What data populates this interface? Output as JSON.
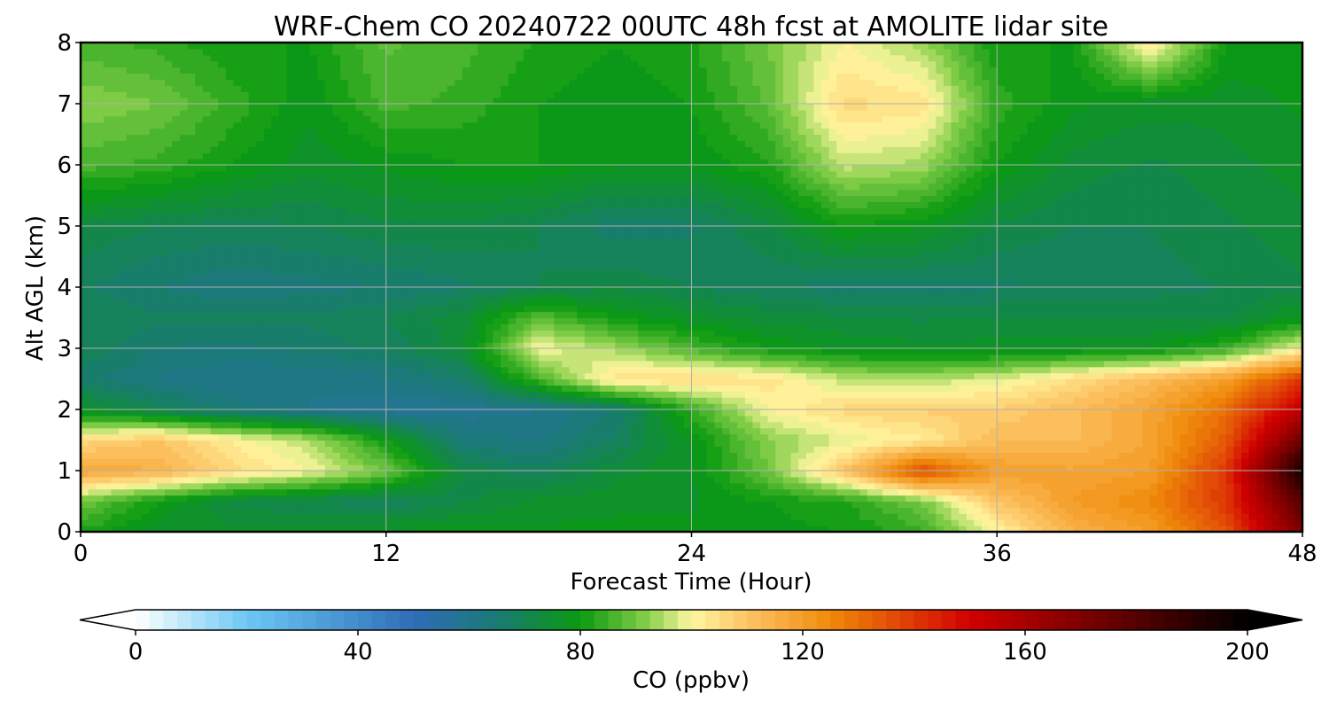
{
  "chart_data": {
    "type": "heatmap",
    "title": "WRF-Chem CO  20240722 00UTC 48h fcst at AMOLITE lidar site",
    "xlabel": "Forecast Time (Hour)",
    "ylabel": "Alt AGL (km)",
    "xlim": [
      0,
      48
    ],
    "ylim": [
      0,
      8
    ],
    "xticks": [
      0,
      12,
      24,
      36,
      48
    ],
    "yticks": [
      0,
      1,
      2,
      3,
      4,
      5,
      6,
      7,
      8
    ],
    "grid": true,
    "colorbar": {
      "label": "CO  (ppbv)",
      "range": [
        0,
        200
      ],
      "ticks": [
        0,
        40,
        80,
        120,
        160,
        200
      ],
      "extend": "both",
      "orientation": "horizontal",
      "colors": [
        {
          "v": 0,
          "c": "#ffffff"
        },
        {
          "v": 20,
          "c": "#6cc8f3"
        },
        {
          "v": 50,
          "c": "#2f6db8"
        },
        {
          "v": 65,
          "c": "#1a7a74"
        },
        {
          "v": 80,
          "c": "#0a9a10"
        },
        {
          "v": 92,
          "c": "#86ce4a"
        },
        {
          "v": 100,
          "c": "#fff7a0"
        },
        {
          "v": 110,
          "c": "#fdc465"
        },
        {
          "v": 125,
          "c": "#f08a0a"
        },
        {
          "v": 150,
          "c": "#d10000"
        },
        {
          "v": 175,
          "c": "#6a0000"
        },
        {
          "v": 200,
          "c": "#000000"
        }
      ]
    },
    "field": {
      "x": [
        0,
        3,
        6,
        9,
        12,
        15,
        18,
        21,
        24,
        27,
        30,
        33,
        36,
        39,
        42,
        45,
        48
      ],
      "y": [
        0,
        0.5,
        1,
        1.5,
        2,
        2.5,
        3,
        3.5,
        4,
        5,
        6,
        7,
        8
      ],
      "z": [
        [
          82,
          76,
          76,
          76,
          78,
          79,
          78,
          78,
          78,
          79,
          80,
          84,
          100,
          115,
          120,
          135,
          170
        ],
        [
          90,
          80,
          72,
          70,
          68,
          72,
          76,
          77,
          77,
          80,
          82,
          90,
          110,
          120,
          125,
          140,
          180
        ],
        [
          118,
          115,
          106,
          100,
          90,
          72,
          68,
          74,
          77,
          90,
          110,
          137,
          120,
          118,
          120,
          140,
          195
        ],
        [
          106,
          110,
          102,
          95,
          80,
          64,
          62,
          68,
          78,
          92,
          98,
          102,
          112,
          112,
          118,
          134,
          175
        ],
        [
          76,
          70,
          64,
          60,
          58,
          58,
          60,
          65,
          84,
          100,
          106,
          108,
          108,
          112,
          118,
          130,
          155
        ],
        [
          66,
          62,
          60,
          60,
          62,
          66,
          86,
          104,
          106,
          104,
          96,
          95,
          98,
          105,
          112,
          120,
          140
        ],
        [
          70,
          65,
          64,
          66,
          68,
          74,
          100,
          94,
          86,
          80,
          77,
          76,
          76,
          77,
          78,
          84,
          100
        ],
        [
          70,
          68,
          68,
          68,
          70,
          74,
          88,
          80,
          76,
          74,
          73,
          72,
          73,
          72,
          72,
          72,
          78
        ],
        [
          68,
          65,
          63,
          64,
          65,
          67,
          70,
          72,
          70,
          68,
          66,
          66,
          67,
          68,
          69,
          70,
          72
        ],
        [
          72,
          70,
          69,
          70,
          72,
          72,
          70,
          66,
          67,
          72,
          80,
          78,
          72,
          70,
          70,
          72,
          74
        ],
        [
          86,
          84,
          80,
          76,
          78,
          80,
          80,
          78,
          78,
          82,
          96,
          94,
          80,
          74,
          72,
          74,
          76
        ],
        [
          92,
          90,
          84,
          78,
          86,
          84,
          80,
          78,
          80,
          88,
          106,
          104,
          84,
          78,
          76,
          76,
          78
        ],
        [
          86,
          84,
          80,
          80,
          88,
          86,
          82,
          80,
          82,
          90,
          100,
          94,
          80,
          80,
          104,
          80,
          78
        ]
      ]
    }
  }
}
